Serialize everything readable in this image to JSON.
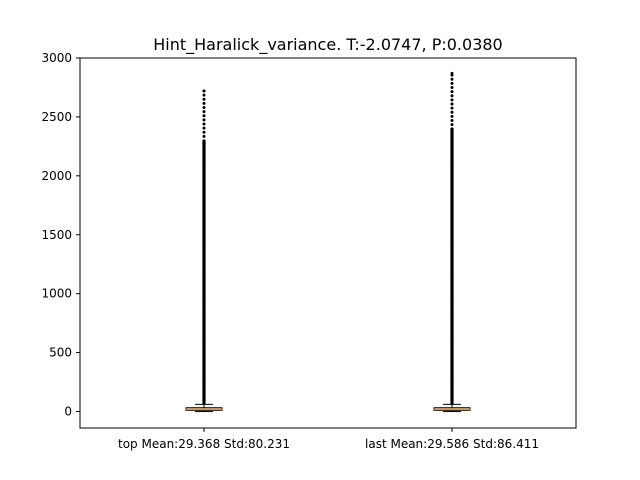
{
  "chart_data": {
    "type": "boxplot",
    "title": "Hint_Haralick_variance. T:-2.0747, P:0.0380",
    "xlabel": "",
    "ylabel": "",
    "ylim": [
      -140,
      3000
    ],
    "yticks": [
      0,
      500,
      1000,
      1500,
      2000,
      2500,
      3000
    ],
    "categories": [
      "top Mean:29.368 Std:80.231",
      "last Mean:29.586 Std:86.411"
    ],
    "grid": false,
    "boxes": [
      {
        "label": "top Mean:29.368 Std:80.231",
        "q1": 10,
        "median": 18,
        "q3": 32,
        "whisker_low": 0,
        "whisker_high": 60,
        "outlier_max": 2720,
        "outlier_dense_to": 2300
      },
      {
        "label": "last Mean:29.586 Std:86.411",
        "q1": 10,
        "median": 18,
        "q3": 32,
        "whisker_low": 0,
        "whisker_high": 60,
        "outlier_max": 2870,
        "outlier_dense_to": 2400
      }
    ],
    "colors": {
      "box": "#000000",
      "median": "#ff7f0e",
      "outlier": "#000000",
      "axes": "#000000"
    }
  }
}
